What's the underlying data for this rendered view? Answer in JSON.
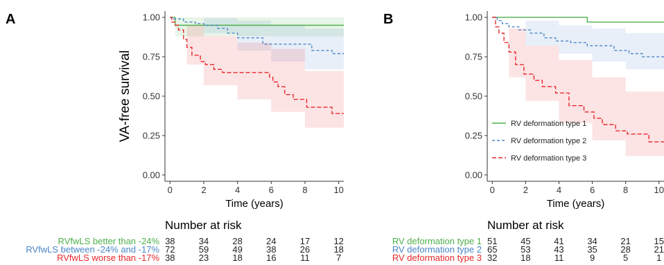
{
  "colors": {
    "green": "#4daf4a",
    "blue": "#4a86c8",
    "red": "#e8282b",
    "axis": "#333333"
  },
  "number_at_risk_title": "Number at risk",
  "chart_data": [
    {
      "panel": "A",
      "type": "line",
      "step": true,
      "title": "",
      "xlabel": "Time (years)",
      "ylabel": "VA-free survival",
      "xlim": [
        -0.3,
        10.3
      ],
      "ylim": [
        -0.04,
        1.04
      ],
      "xticks": [
        0,
        2,
        4,
        6,
        8,
        10
      ],
      "yticks": [
        0.0,
        0.25,
        0.5,
        0.75,
        1.0
      ],
      "yticklabels": [
        "0.00",
        "0.25",
        "0.50",
        "0.75",
        "1.00"
      ],
      "legend": "none",
      "series": [
        {
          "name": "RVfwLS better than -24%",
          "color": "#4daf4a",
          "dash": "none",
          "x": [
            0,
            0.3,
            10.3
          ],
          "y": [
            1.0,
            0.95,
            0.95
          ],
          "ci_x": [
            0,
            0.3,
            10.3
          ],
          "ci_lo": [
            1.0,
            0.88,
            0.86
          ],
          "ci_hi": [
            1.0,
            1.0,
            1.0
          ]
        },
        {
          "name": "RVfwLS between -24% and -17%",
          "color": "#4a86c8",
          "dash": "4,3",
          "x": [
            0,
            0.2,
            0.8,
            1.5,
            2.0,
            2.8,
            3.4,
            4.0,
            4.6,
            5.5,
            6.5,
            8.4,
            9.6,
            10.3
          ],
          "y": [
            1.0,
            0.99,
            0.97,
            0.96,
            0.95,
            0.93,
            0.9,
            0.87,
            0.87,
            0.83,
            0.83,
            0.79,
            0.77,
            0.77
          ],
          "ci_x": [
            0,
            2.0,
            4.0,
            6.0,
            8.0,
            10.3
          ],
          "ci_lo": [
            1.0,
            0.9,
            0.79,
            0.72,
            0.67,
            0.64
          ],
          "ci_hi": [
            1.0,
            0.995,
            0.98,
            0.95,
            0.93,
            0.9
          ]
        },
        {
          "name": "RVfwLS worse than -17%",
          "color": "#e8282b",
          "dash": "6,3",
          "x": [
            0,
            0.1,
            0.3,
            0.5,
            0.8,
            1.0,
            1.3,
            1.8,
            2.1,
            2.6,
            3.1,
            3.8,
            5.9,
            6.1,
            6.4,
            6.8,
            7.3,
            8.1,
            9.6,
            10.3
          ],
          "y": [
            1.0,
            0.97,
            0.95,
            0.92,
            0.86,
            0.81,
            0.76,
            0.72,
            0.7,
            0.67,
            0.65,
            0.65,
            0.62,
            0.59,
            0.56,
            0.51,
            0.48,
            0.43,
            0.39,
            0.39
          ],
          "ci_x": [
            0,
            1.0,
            2.0,
            4.0,
            6.0,
            8.0,
            10.3
          ],
          "ci_lo": [
            1.0,
            0.7,
            0.57,
            0.48,
            0.4,
            0.3,
            0.24
          ],
          "ci_hi": [
            1.0,
            0.95,
            0.88,
            0.84,
            0.8,
            0.66,
            0.62
          ]
        }
      ],
      "risk_table": {
        "times": [
          0,
          2,
          4,
          6,
          8,
          10
        ],
        "rows": [
          {
            "label": "RVfwLS better than -24%",
            "color": "#4daf4a",
            "values": [
              "38",
              "34",
              "28",
              "24",
              "17",
              "12"
            ]
          },
          {
            "label": "RVfwLS between -24% and -17%",
            "color": "#4a86c8",
            "values": [
              "72",
              "59",
              "49",
              "38",
              "26",
              "18"
            ]
          },
          {
            "label": "RVfwLS worse than -17%",
            "color": "#e8282b",
            "values": [
              "38",
              "23",
              "18",
              "16",
              "11",
              "7"
            ]
          }
        ]
      }
    },
    {
      "panel": "B",
      "type": "line",
      "step": true,
      "title": "",
      "xlabel": "Time (years)",
      "ylabel": "",
      "xlim": [
        -0.3,
        10.3
      ],
      "ylim": [
        -0.04,
        1.04
      ],
      "xticks": [
        0,
        2,
        4,
        6,
        8,
        10
      ],
      "yticks": [
        0.0,
        0.25,
        0.5,
        0.75,
        1.0
      ],
      "yticklabels": [
        "0.00",
        "0.25",
        "0.50",
        "0.75",
        "1.00"
      ],
      "legend": "bottom-left",
      "series": [
        {
          "name": "RV deformation type 1",
          "color": "#4daf4a",
          "dash": "none",
          "x": [
            0,
            5.7,
            10.3
          ],
          "y": [
            1.0,
            0.97,
            0.97
          ],
          "ci_x": [
            0,
            10.3
          ],
          "ci_lo": [
            1.0,
            0.9
          ],
          "ci_hi": [
            1.0,
            1.0
          ]
        },
        {
          "name": "RV deformation type 2",
          "color": "#4a86c8",
          "dash": "4,3",
          "x": [
            0,
            0.3,
            0.6,
            1.0,
            1.6,
            2.3,
            3.1,
            3.8,
            4.7,
            5.7,
            7.3,
            8.2,
            9.0,
            10.3
          ],
          "y": [
            1.0,
            0.98,
            0.96,
            0.94,
            0.92,
            0.9,
            0.87,
            0.85,
            0.84,
            0.82,
            0.79,
            0.77,
            0.75,
            0.75
          ],
          "ci_x": [
            0,
            2.0,
            4.0,
            6.0,
            8.0,
            10.3
          ],
          "ci_lo": [
            1.0,
            0.82,
            0.77,
            0.72,
            0.67,
            0.63
          ],
          "ci_hi": [
            1.0,
            0.98,
            0.95,
            0.93,
            0.9,
            0.88
          ]
        },
        {
          "name": "RV deformation type 3",
          "color": "#e8282b",
          "dash": "6,3",
          "x": [
            0,
            0.2,
            0.4,
            0.7,
            1.0,
            1.4,
            1.9,
            2.5,
            3.0,
            3.8,
            4.6,
            5.5,
            6.1,
            6.6,
            7.4,
            8.1,
            9.0,
            9.4,
            10.3
          ],
          "y": [
            1.0,
            0.94,
            0.9,
            0.84,
            0.78,
            0.7,
            0.64,
            0.6,
            0.56,
            0.52,
            0.44,
            0.4,
            0.36,
            0.32,
            0.28,
            0.26,
            0.26,
            0.21,
            0.21
          ],
          "ci_x": [
            0,
            1.0,
            2.0,
            4.0,
            6.0,
            8.0,
            10.3
          ],
          "ci_lo": [
            1.0,
            0.62,
            0.47,
            0.33,
            0.22,
            0.12,
            0.09
          ],
          "ci_hi": [
            1.0,
            0.93,
            0.82,
            0.73,
            0.62,
            0.53,
            0.5
          ]
        }
      ],
      "risk_table": {
        "times": [
          0,
          2,
          4,
          6,
          8,
          10
        ],
        "rows": [
          {
            "label": "RV deformation type 1",
            "color": "#4daf4a",
            "values": [
              "51",
              "45",
              "41",
              "34",
              "21",
              "15"
            ]
          },
          {
            "label": "RV deformation type 2",
            "color": "#4a86c8",
            "values": [
              "65",
              "53",
              "43",
              "35",
              "28",
              "21"
            ]
          },
          {
            "label": "RV deformation type 3",
            "color": "#e8282b",
            "values": [
              "32",
              "18",
              "11",
              "9",
              "5",
              "1"
            ]
          }
        ]
      }
    }
  ]
}
